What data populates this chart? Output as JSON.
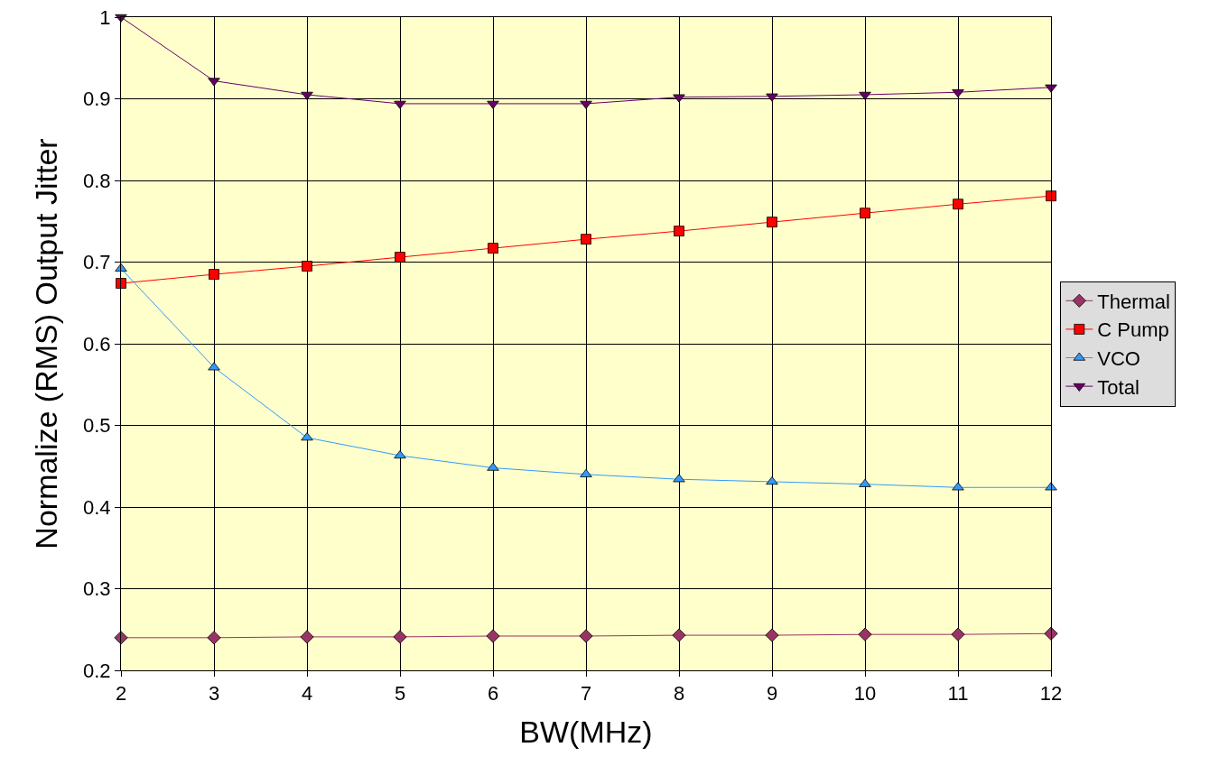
{
  "chart_data": {
    "type": "line",
    "xlabel": "BW(MHz)",
    "ylabel": "Normalize (RMS) Output Jitter",
    "x": [
      2,
      3,
      4,
      5,
      6,
      7,
      8,
      9,
      10,
      11,
      12
    ],
    "xlim": [
      2,
      12
    ],
    "xticks": [
      2,
      3,
      4,
      5,
      6,
      7,
      8,
      9,
      10,
      11,
      12
    ],
    "ylim": [
      0.2,
      1
    ],
    "yticks": [
      0.2,
      0.3,
      0.4,
      0.5,
      0.6,
      0.7,
      0.8,
      0.9,
      1
    ],
    "grid": true,
    "legend": "right",
    "line_style": "solid",
    "series": [
      {
        "name": "Thermal",
        "color": "#993366",
        "marker": "diamond",
        "values": [
          0.24,
          0.24,
          0.241,
          0.241,
          0.242,
          0.242,
          0.243,
          0.243,
          0.244,
          0.244,
          0.245
        ]
      },
      {
        "name": "C Pump",
        "color": "#ff0000",
        "marker": "square",
        "values": [
          0.674,
          0.685,
          0.695,
          0.706,
          0.717,
          0.728,
          0.738,
          0.749,
          0.76,
          0.771,
          0.781
        ]
      },
      {
        "name": "VCO",
        "color": "#3399ff",
        "marker": "triangle",
        "values": [
          0.692,
          0.571,
          0.485,
          0.463,
          0.448,
          0.44,
          0.434,
          0.431,
          0.428,
          0.424,
          0.424
        ]
      },
      {
        "name": "Total",
        "color": "#660066",
        "marker": "triangle-down",
        "values": [
          1,
          0.922,
          0.905,
          0.894,
          0.894,
          0.894,
          0.902,
          0.903,
          0.905,
          0.908,
          0.914
        ]
      }
    ]
  }
}
